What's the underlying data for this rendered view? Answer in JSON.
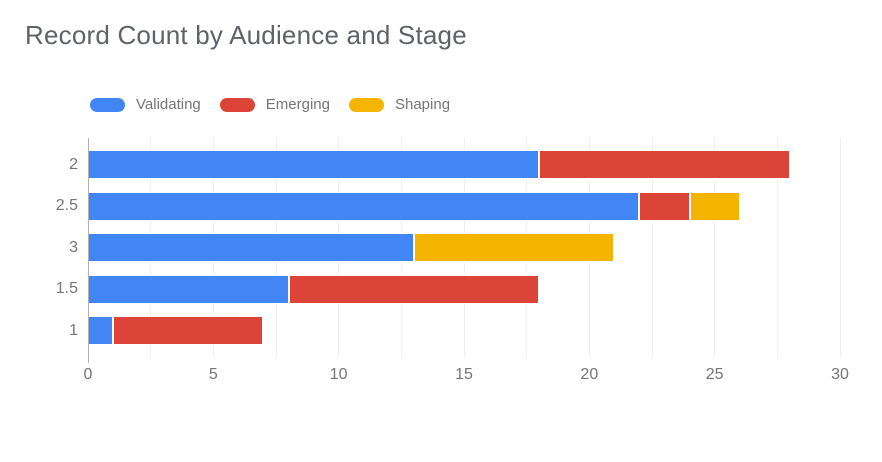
{
  "title": "Record Count by Audience and Stage",
  "chart_data": {
    "type": "bar",
    "orientation": "horizontal",
    "stacked": true,
    "title": "Record Count by Audience and Stage",
    "categories": [
      "2",
      "2.5",
      "3",
      "1.5",
      "1"
    ],
    "series": [
      {
        "name": "Validating",
        "color": "#4285F4",
        "values": [
          18,
          22,
          13,
          8,
          1
        ]
      },
      {
        "name": "Emerging",
        "color": "#DB4437",
        "values": [
          10,
          2,
          0,
          10,
          6
        ]
      },
      {
        "name": "Shaping",
        "color": "#F4B400",
        "values": [
          0,
          2,
          8,
          0,
          0
        ]
      }
    ],
    "category_totals": [
      28,
      26,
      21,
      18,
      7
    ],
    "x_axis": {
      "min": 0,
      "max": 30,
      "tick_step": 5,
      "gridline_step": 2.5,
      "tick_labels": [
        "0",
        "5",
        "10",
        "15",
        "20",
        "25",
        "30"
      ]
    },
    "y_axis_label": "",
    "x_axis_label": "",
    "legend_position": "top",
    "grid": true
  },
  "colors": {
    "background": "#ffffff",
    "title_text": "#5f6368",
    "axis_text": "#757575",
    "category_text": "#757575",
    "legend_text": "#757575",
    "gridline": "#efefef",
    "axis_line": "#b0b0b0",
    "bar_stroke": "#ffffff"
  }
}
